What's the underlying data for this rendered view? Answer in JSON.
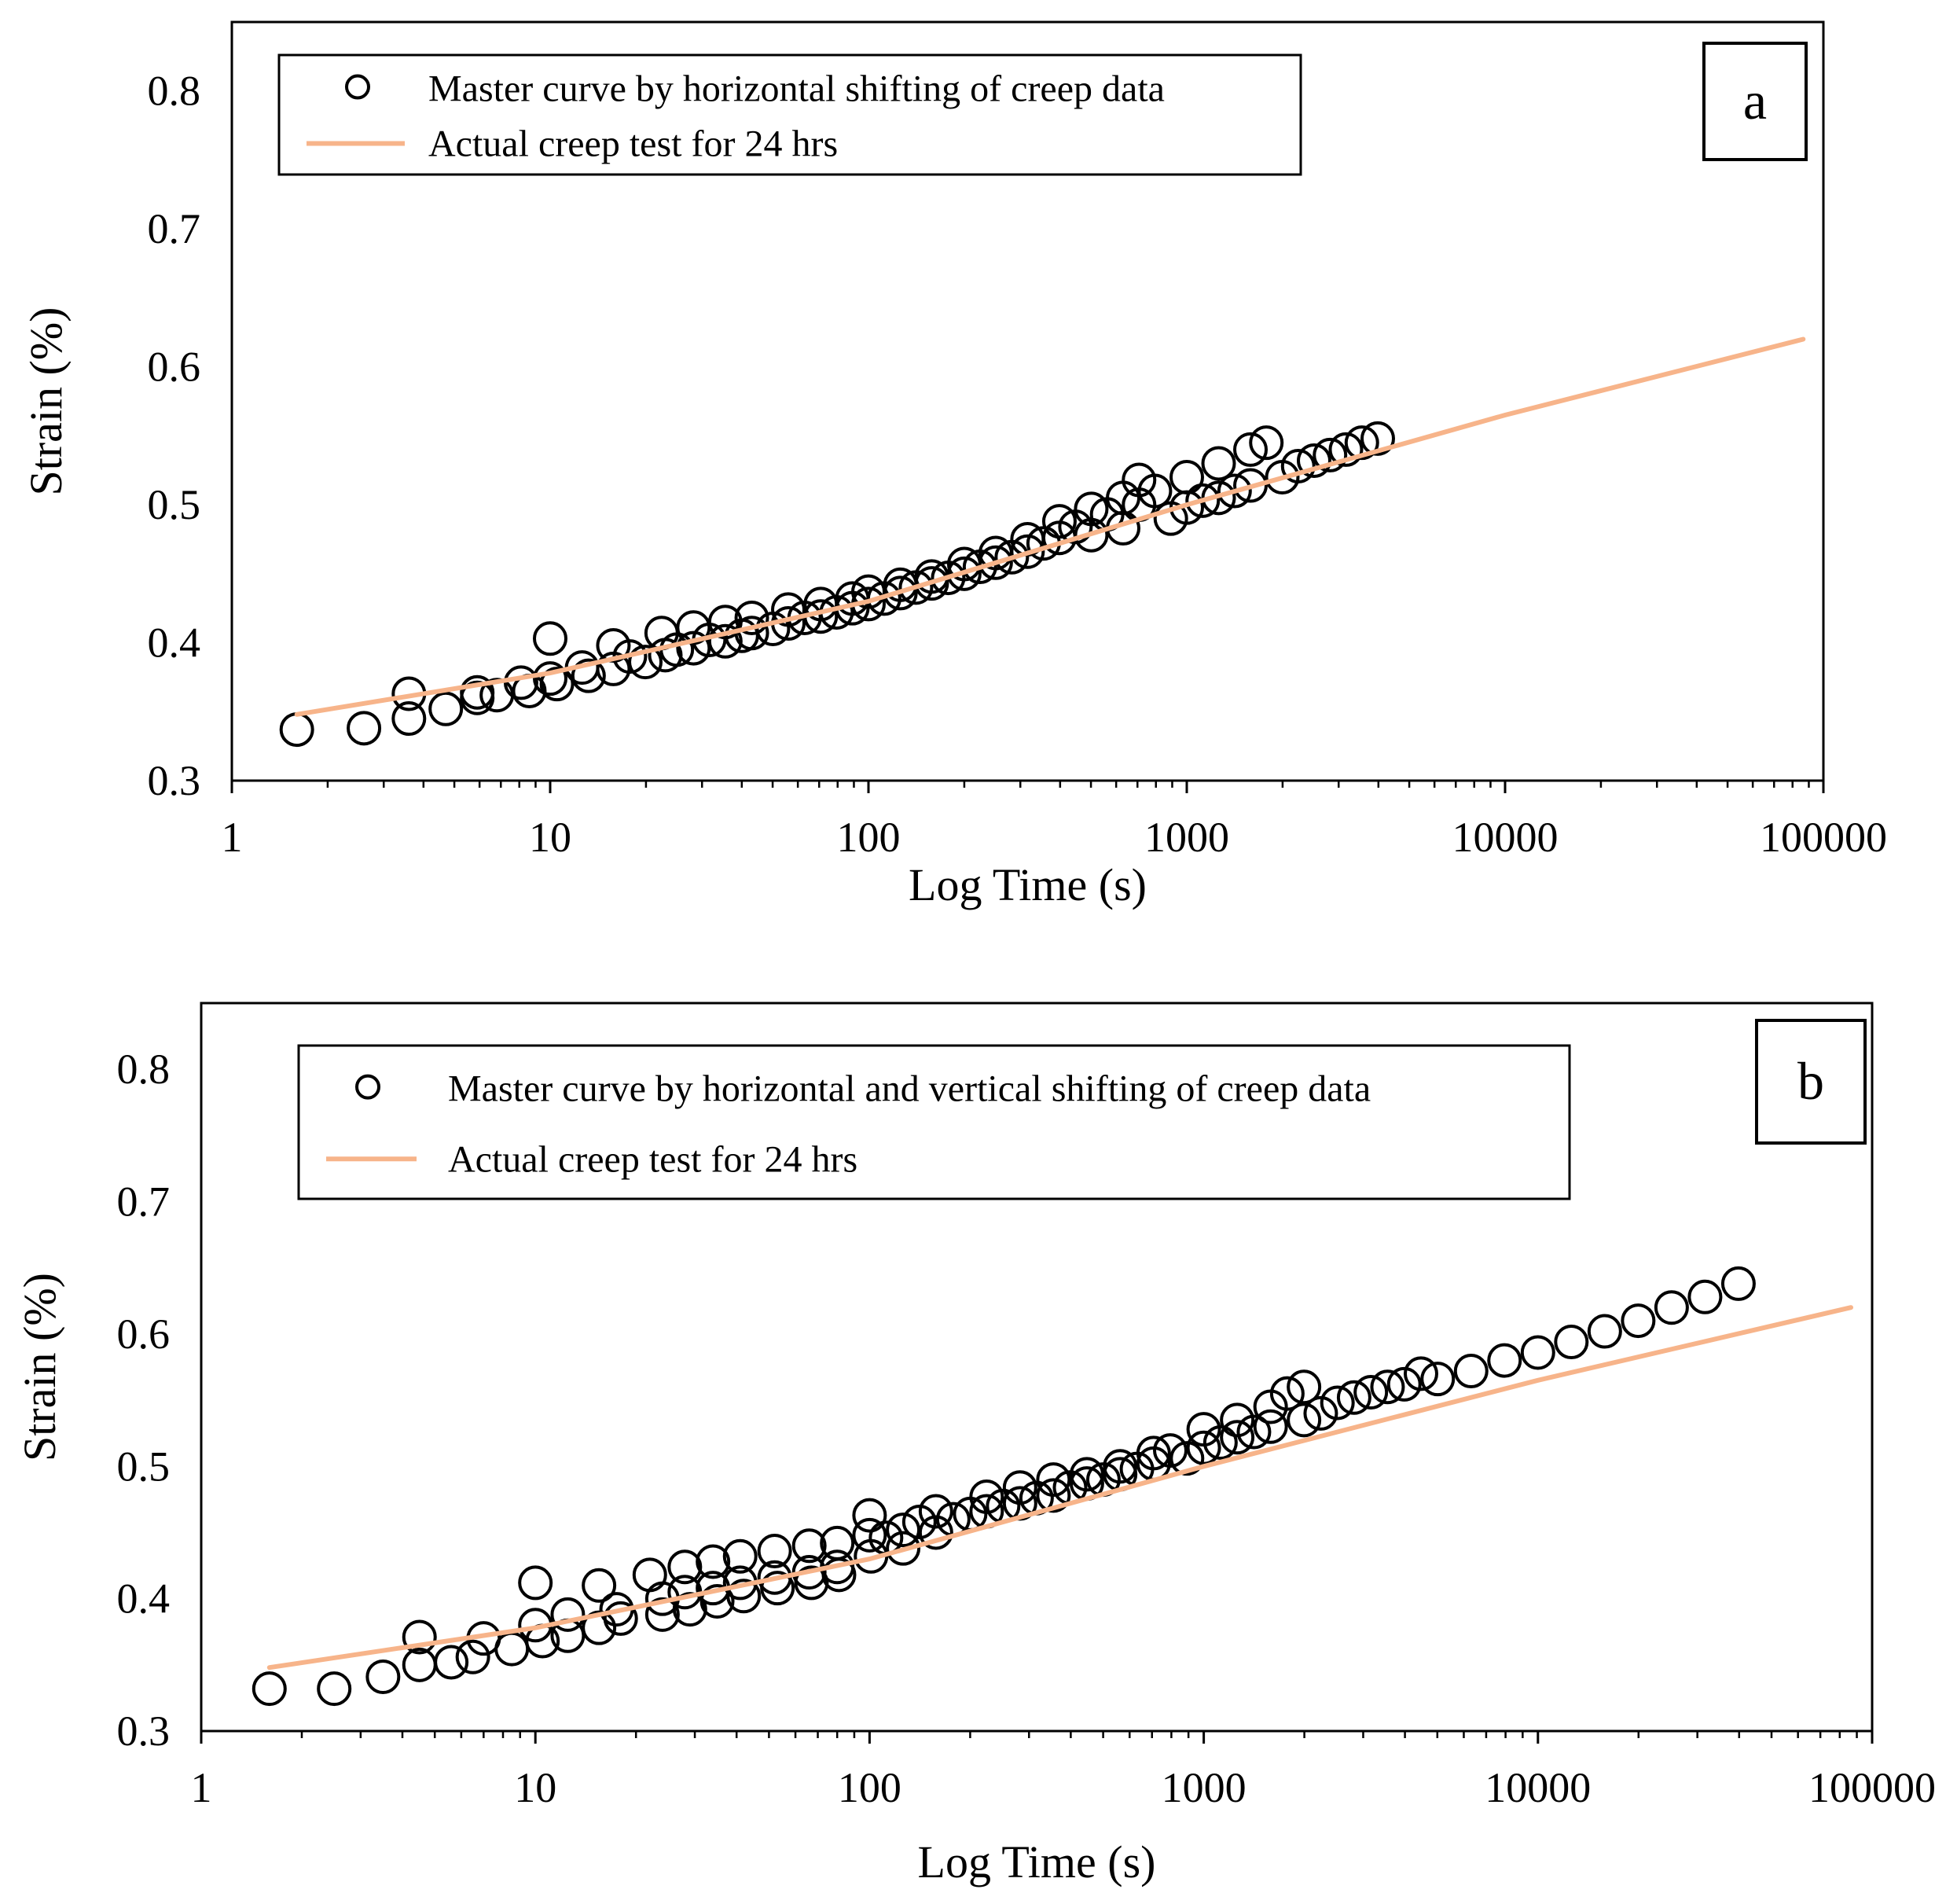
{
  "chart_data": [
    {
      "type": "scatter",
      "panel_label": "a",
      "xlabel": "Log Time (s)",
      "ylabel": "Strain (%)",
      "xscale": "log",
      "xlim": [
        1,
        100000
      ],
      "ylim": [
        0.3,
        0.85
      ],
      "xticks": [
        "1",
        "10",
        "100",
        "1000",
        "10000",
        "100000"
      ],
      "yticks": [
        "0.3",
        "0.4",
        "0.5",
        "0.6",
        "0.7",
        "0.8"
      ],
      "grid": false,
      "legend_position": "top-left",
      "colors": {
        "markers": "#000000",
        "line": "#F7B48A"
      },
      "series": [
        {
          "name": "Master curve by horizontal shifting of creep data",
          "kind": "markers",
          "points": [
            [
              1.6,
              0.337
            ],
            [
              2.6,
              0.338
            ],
            [
              3.6,
              0.345
            ],
            [
              3.6,
              0.363
            ],
            [
              4.7,
              0.352
            ],
            [
              5.9,
              0.36
            ],
            [
              5.9,
              0.364
            ],
            [
              6.8,
              0.362
            ],
            [
              8.1,
              0.371
            ],
            [
              8.6,
              0.365
            ],
            [
              10,
              0.403
            ],
            [
              10,
              0.374
            ],
            [
              10.5,
              0.37
            ],
            [
              12.6,
              0.382
            ],
            [
              13.2,
              0.376
            ],
            [
              15.8,
              0.398
            ],
            [
              15.8,
              0.381
            ],
            [
              17.8,
              0.39
            ],
            [
              19.9,
              0.386
            ],
            [
              22.4,
              0.407
            ],
            [
              23,
              0.391
            ],
            [
              25,
              0.395
            ],
            [
              28.2,
              0.411
            ],
            [
              28.2,
              0.396
            ],
            [
              31.6,
              0.402
            ],
            [
              35.5,
              0.415
            ],
            [
              35.5,
              0.401
            ],
            [
              40,
              0.405
            ],
            [
              43,
              0.418
            ],
            [
              43,
              0.407
            ],
            [
              50.1,
              0.41
            ],
            [
              56,
              0.424
            ],
            [
              56,
              0.414
            ],
            [
              63,
              0.418
            ],
            [
              70.8,
              0.428
            ],
            [
              70.8,
              0.419
            ],
            [
              79.4,
              0.422
            ],
            [
              89,
              0.432
            ],
            [
              89,
              0.425
            ],
            [
              100,
              0.437
            ],
            [
              100,
              0.428
            ],
            [
              112,
              0.432
            ],
            [
              126,
              0.442
            ],
            [
              126,
              0.436
            ],
            [
              141,
              0.44
            ],
            [
              158,
              0.448
            ],
            [
              158,
              0.443
            ],
            [
              178,
              0.447
            ],
            [
              200,
              0.457
            ],
            [
              200,
              0.45
            ],
            [
              224,
              0.455
            ],
            [
              251,
              0.465
            ],
            [
              251,
              0.458
            ],
            [
              282,
              0.462
            ],
            [
              316,
              0.475
            ],
            [
              316,
              0.466
            ],
            [
              355,
              0.472
            ],
            [
              398,
              0.488
            ],
            [
              398,
              0.476
            ],
            [
              447,
              0.484
            ],
            [
              501,
              0.497
            ],
            [
              501,
              0.478
            ],
            [
              562,
              0.493
            ],
            [
              631,
              0.505
            ],
            [
              631,
              0.483
            ],
            [
              708,
              0.518
            ],
            [
              708,
              0.5
            ],
            [
              794,
              0.51
            ],
            [
              891,
              0.49
            ],
            [
              1000,
              0.52
            ],
            [
              1000,
              0.498
            ],
            [
              1122,
              0.503
            ],
            [
              1259,
              0.53
            ],
            [
              1259,
              0.505
            ],
            [
              1413,
              0.51
            ],
            [
              1585,
              0.54
            ],
            [
              1585,
              0.514
            ],
            [
              1778,
              0.545
            ],
            [
              1995,
              0.52
            ],
            [
              2239,
              0.528
            ],
            [
              2512,
              0.532
            ],
            [
              2818,
              0.536
            ],
            [
              3162,
              0.54
            ],
            [
              3548,
              0.545
            ],
            [
              3981,
              0.548
            ]
          ]
        },
        {
          "name": "Actual creep test for 24 hrs",
          "kind": "line",
          "points": [
            [
              1.6,
              0.348
            ],
            [
              10,
              0.378
            ],
            [
              100,
              0.43
            ],
            [
              1000,
              0.5
            ],
            [
              10000,
              0.565
            ],
            [
              86400,
              0.62
            ]
          ]
        }
      ]
    },
    {
      "type": "scatter",
      "panel_label": "b",
      "xlabel": "Log Time (s)",
      "ylabel": "Strain (%)",
      "xscale": "log",
      "xlim": [
        1,
        100000
      ],
      "ylim": [
        0.3,
        0.85
      ],
      "xticks": [
        "1",
        "10",
        "100",
        "1000",
        "10000",
        "100000"
      ],
      "yticks": [
        "0.3",
        "0.4",
        "0.5",
        "0.6",
        "0.7",
        "0.8"
      ],
      "grid": false,
      "legend_position": "top-left",
      "colors": {
        "markers": "#000000",
        "line": "#F7B48A"
      },
      "series": [
        {
          "name": "Master curve by horizontal and vertical shifting of creep data",
          "kind": "markers",
          "points": [
            [
              1.6,
              0.332
            ],
            [
              2.5,
              0.332
            ],
            [
              3.5,
              0.341
            ],
            [
              4.5,
              0.371
            ],
            [
              4.5,
              0.35
            ],
            [
              5.6,
              0.352
            ],
            [
              6.5,
              0.356
            ],
            [
              7,
              0.37
            ],
            [
              8.5,
              0.362
            ],
            [
              10,
              0.412
            ],
            [
              10,
              0.38
            ],
            [
              10.5,
              0.368
            ],
            [
              12.5,
              0.388
            ],
            [
              12.5,
              0.372
            ],
            [
              15.5,
              0.41
            ],
            [
              15.5,
              0.378
            ],
            [
              17.5,
              0.392
            ],
            [
              18,
              0.385
            ],
            [
              22,
              0.418
            ],
            [
              24,
              0.4
            ],
            [
              24,
              0.388
            ],
            [
              28,
              0.424
            ],
            [
              28,
              0.405
            ],
            [
              29,
              0.392
            ],
            [
              34,
              0.428
            ],
            [
              34,
              0.408
            ],
            [
              35,
              0.398
            ],
            [
              41,
              0.432
            ],
            [
              41,
              0.412
            ],
            [
              42,
              0.402
            ],
            [
              52,
              0.436
            ],
            [
              52,
              0.416
            ],
            [
              53,
              0.408
            ],
            [
              66,
              0.44
            ],
            [
              66,
              0.42
            ],
            [
              67,
              0.412
            ],
            [
              80,
              0.442
            ],
            [
              80,
              0.424
            ],
            [
              81,
              0.418
            ],
            [
              100,
              0.463
            ],
            [
              100,
              0.448
            ],
            [
              101,
              0.432
            ],
            [
              112,
              0.446
            ],
            [
              126,
              0.452
            ],
            [
              126,
              0.438
            ],
            [
              141,
              0.458
            ],
            [
              158,
              0.466
            ],
            [
              158,
              0.45
            ],
            [
              178,
              0.46
            ],
            [
              200,
              0.464
            ],
            [
              224,
              0.477
            ],
            [
              224,
              0.466
            ],
            [
              251,
              0.47
            ],
            [
              282,
              0.484
            ],
            [
              282,
              0.472
            ],
            [
              316,
              0.476
            ],
            [
              355,
              0.49
            ],
            [
              355,
              0.478
            ],
            [
              398,
              0.484
            ],
            [
              447,
              0.494
            ],
            [
              447,
              0.487
            ],
            [
              501,
              0.49
            ],
            [
              562,
              0.5
            ],
            [
              562,
              0.494
            ],
            [
              631,
              0.498
            ],
            [
              708,
              0.51
            ],
            [
              708,
              0.502
            ],
            [
              794,
              0.512
            ],
            [
              891,
              0.506
            ],
            [
              1000,
              0.528
            ],
            [
              1000,
              0.514
            ],
            [
              1122,
              0.518
            ],
            [
              1259,
              0.535
            ],
            [
              1259,
              0.522
            ],
            [
              1413,
              0.526
            ],
            [
              1585,
              0.545
            ],
            [
              1585,
              0.53
            ],
            [
              1778,
              0.555
            ],
            [
              1995,
              0.56
            ],
            [
              1995,
              0.535
            ],
            [
              2239,
              0.54
            ],
            [
              2512,
              0.548
            ],
            [
              2818,
              0.552
            ],
            [
              3162,
              0.556
            ],
            [
              3548,
              0.56
            ],
            [
              3981,
              0.562
            ],
            [
              4467,
              0.57
            ],
            [
              5012,
              0.566
            ],
            [
              6310,
              0.572
            ],
            [
              7943,
              0.58
            ],
            [
              10000,
              0.586
            ],
            [
              12589,
              0.594
            ],
            [
              15849,
              0.602
            ],
            [
              19953,
              0.61
            ],
            [
              25119,
              0.62
            ],
            [
              31623,
              0.628
            ],
            [
              39811,
              0.638
            ]
          ]
        },
        {
          "name": "Actual creep test for 24 hrs",
          "kind": "line",
          "points": [
            [
              1.6,
              0.348
            ],
            [
              10,
              0.378
            ],
            [
              100,
              0.43
            ],
            [
              1000,
              0.5
            ],
            [
              10000,
              0.565
            ],
            [
              86400,
              0.62
            ]
          ]
        }
      ]
    }
  ]
}
